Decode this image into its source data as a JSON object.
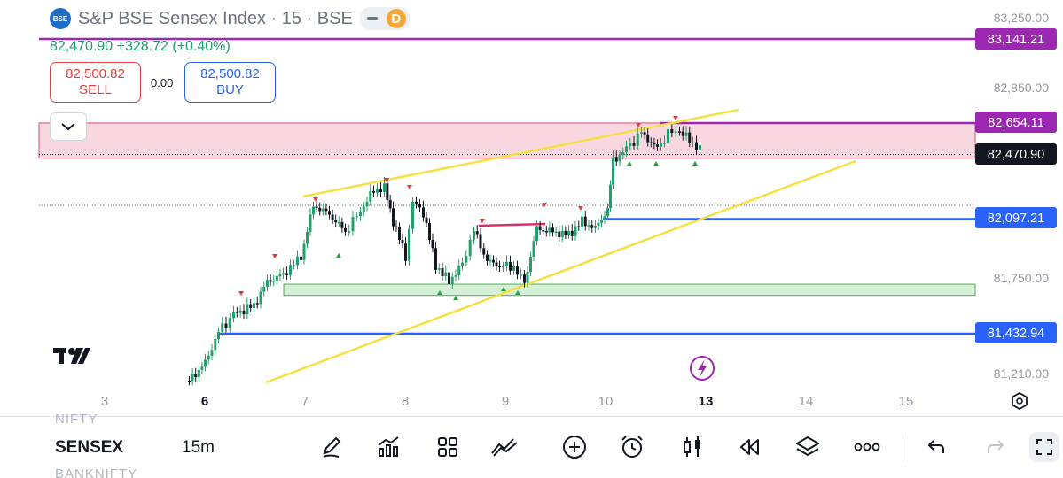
{
  "header": {
    "logo_text": "BSE",
    "symbol_title": "S&P BSE Sensex Index · 15 · BSE",
    "mode_badge": "D",
    "price_change": "82,470.90  +328.72 (+0.40%)"
  },
  "trade": {
    "sell_price": "82,500.82",
    "sell_label": "SELL",
    "spread": "0.00",
    "buy_price": "82,500.82",
    "buy_label": "BUY"
  },
  "watermark_logo": "TV",
  "chart_data": {
    "type": "candlestick",
    "price_axis": {
      "ticks": [
        "83,250.00",
        "82,850.00",
        "81,750.00",
        "81,210.00"
      ],
      "badges": [
        {
          "label": "83,141.21",
          "color": "#9c27b0"
        },
        {
          "label": "82,654.11",
          "color": "#9c27b0"
        },
        {
          "label": "82,470.90",
          "color": "#131722"
        },
        {
          "label": "82,097.21",
          "color": "#2962ff"
        },
        {
          "label": "81,432.94",
          "color": "#2962ff"
        }
      ]
    },
    "time_axis": {
      "ticks": [
        "3",
        "6",
        "7",
        "8",
        "9",
        "10",
        "13",
        "14",
        "15"
      ]
    },
    "ylim": [
      81100,
      83300
    ],
    "last_price": 82470.9,
    "horizontal_lines": [
      {
        "price": 83141.21,
        "color": "#9c27b0"
      },
      {
        "price": 82654.11,
        "color": "#9c27b0"
      },
      {
        "price": 82097.21,
        "color": "#2962ff"
      },
      {
        "price": 81432.94,
        "color": "#2962ff"
      }
    ],
    "zones": [
      {
        "top": 82654.11,
        "bottom": 82450,
        "color": "#f8d7e0",
        "border": "#d44d6e"
      },
      {
        "top": 81720,
        "bottom": 81655,
        "color": "#d4f0d6",
        "border": "#4caf50"
      }
    ],
    "trendlines_color": "#f5e042",
    "colors": {
      "up": "#22a06b",
      "down": "#131722",
      "accent": "#9c27b0"
    }
  },
  "toolbar": {
    "ghost_top": "NIFTY",
    "symbol": "SENSEX",
    "interval": "15m",
    "ghost_bottom": "BANKNIFTY",
    "icons": [
      "draw-icon",
      "indicators-icon",
      "layouts-icon",
      "compare-icon",
      "add-icon",
      "alert-icon",
      "chart-type-icon",
      "replay-icon",
      "layers-icon",
      "more-icon",
      "undo-icon",
      "redo-icon",
      "fullscreen-icon"
    ]
  }
}
